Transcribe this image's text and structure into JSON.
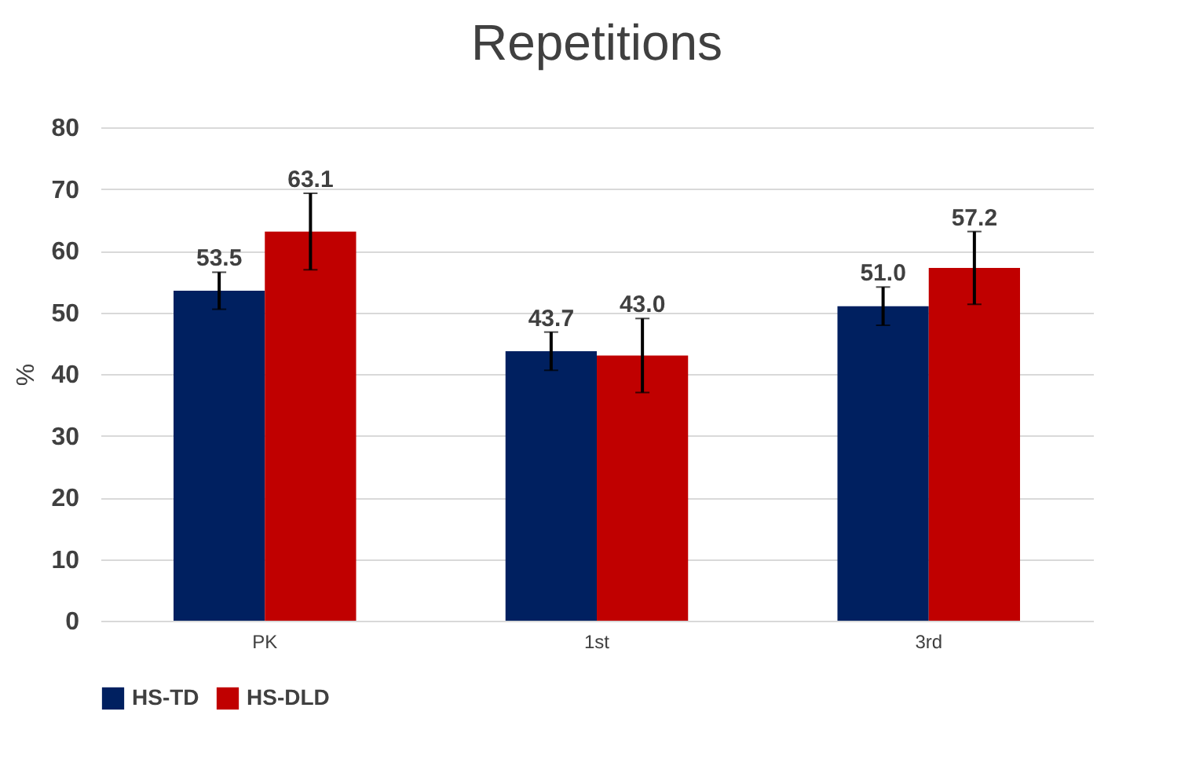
{
  "chart_data": {
    "type": "bar",
    "title": "Repetitions",
    "ylabel": "%",
    "categories": [
      "PK",
      "1st",
      "3rd"
    ],
    "series": [
      {
        "name": "HS-TD",
        "color": "#002060",
        "values": [
          53.5,
          43.7,
          51.0
        ],
        "errors": [
          3,
          3.1,
          3.1
        ],
        "value_labels": [
          "53.5",
          "43.7",
          "51.0"
        ]
      },
      {
        "name": "HS-DLD",
        "color": "#c00000",
        "values": [
          63.1,
          43.0,
          57.2
        ],
        "errors": [
          6.2,
          6,
          5.9
        ],
        "value_labels": [
          "63.1",
          "43.0",
          "57.2"
        ]
      }
    ],
    "ylim": [
      0,
      80
    ],
    "yticks": [
      0,
      10,
      20,
      30,
      40,
      50,
      60,
      70,
      80
    ],
    "grid": "y",
    "legend": "bottom"
  }
}
